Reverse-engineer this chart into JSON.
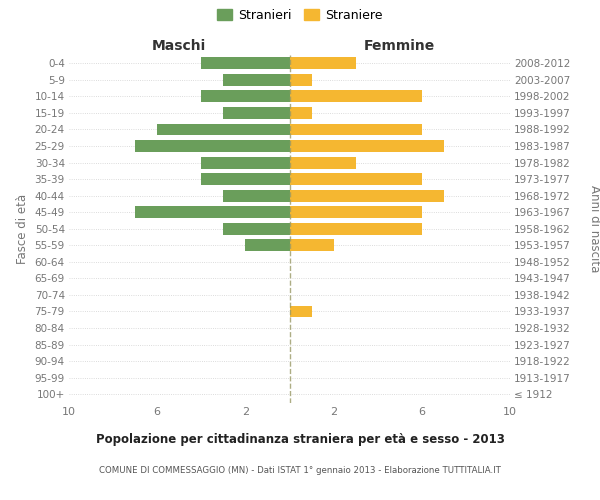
{
  "age_groups": [
    "100+",
    "95-99",
    "90-94",
    "85-89",
    "80-84",
    "75-79",
    "70-74",
    "65-69",
    "60-64",
    "55-59",
    "50-54",
    "45-49",
    "40-44",
    "35-39",
    "30-34",
    "25-29",
    "20-24",
    "15-19",
    "10-14",
    "5-9",
    "0-4"
  ],
  "birth_years": [
    "≤ 1912",
    "1913-1917",
    "1918-1922",
    "1923-1927",
    "1928-1932",
    "1933-1937",
    "1938-1942",
    "1943-1947",
    "1948-1952",
    "1953-1957",
    "1958-1962",
    "1963-1967",
    "1968-1972",
    "1973-1977",
    "1978-1982",
    "1983-1987",
    "1988-1992",
    "1993-1997",
    "1998-2002",
    "2003-2007",
    "2008-2012"
  ],
  "males": [
    0,
    0,
    0,
    0,
    0,
    0,
    0,
    0,
    0,
    2,
    3,
    7,
    3,
    4,
    4,
    7,
    6,
    3,
    4,
    3,
    4
  ],
  "females": [
    0,
    0,
    0,
    0,
    0,
    1,
    0,
    0,
    0,
    2,
    6,
    6,
    7,
    6,
    3,
    7,
    6,
    1,
    6,
    1,
    3
  ],
  "male_color": "#6a9e5b",
  "female_color": "#f5b731",
  "male_label": "Stranieri",
  "female_label": "Straniere",
  "title": "Popolazione per cittadinanza straniera per età e sesso - 2013",
  "subtitle": "COMUNE DI COMMESSAGGIO (MN) - Dati ISTAT 1° gennaio 2013 - Elaborazione TUTTITALIA.IT",
  "left_header": "Maschi",
  "right_header": "Femmine",
  "left_ylabel": "Fasce di età",
  "right_ylabel": "Anni di nascita",
  "xlim": 10,
  "bg_color": "#ffffff",
  "grid_color": "#d0d0d0",
  "label_color": "#777777"
}
